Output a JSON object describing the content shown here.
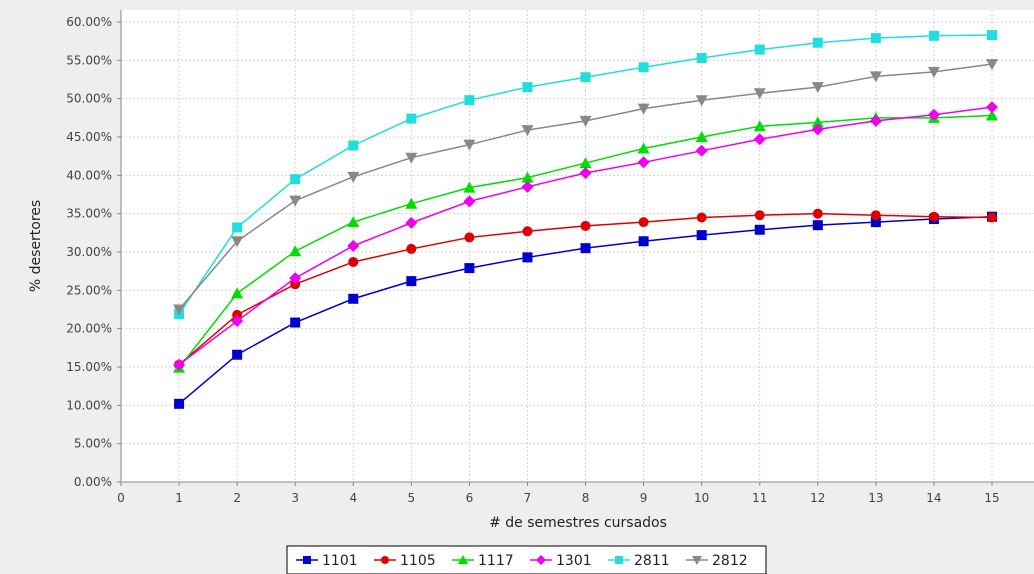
{
  "chart_data": {
    "type": "line",
    "xlabel": "# de semestres cursados",
    "ylabel": "% desertores",
    "xlim": [
      0,
      15
    ],
    "ylim": [
      0,
      60
    ],
    "x": [
      1,
      2,
      3,
      4,
      5,
      6,
      7,
      8,
      9,
      10,
      11,
      12,
      13,
      14,
      15
    ],
    "x_ticks": [
      "0",
      "1",
      "2",
      "3",
      "4",
      "5",
      "6",
      "7",
      "8",
      "9",
      "10",
      "11",
      "12",
      "13",
      "14",
      "15"
    ],
    "y_ticks": [
      "0.00%",
      "5.00%",
      "10.00%",
      "15.00%",
      "20.00%",
      "25.00%",
      "30.00%",
      "35.00%",
      "40.00%",
      "45.00%",
      "50.00%",
      "55.00%",
      "60.00%"
    ],
    "grid": true,
    "legend_position": "bottom-center",
    "series": [
      {
        "name": "1101",
        "color": "#0000cc",
        "marker": "square",
        "values": [
          10.2,
          16.6,
          20.8,
          23.9,
          26.2,
          27.9,
          29.3,
          30.5,
          31.4,
          32.2,
          32.9,
          33.5,
          33.9,
          34.3,
          34.6
        ]
      },
      {
        "name": "1105",
        "color": "#dd0000",
        "marker": "circle",
        "values": [
          15.3,
          21.8,
          25.8,
          28.7,
          30.4,
          31.9,
          32.7,
          33.4,
          33.9,
          34.5,
          34.8,
          35.0,
          34.8,
          34.6,
          34.5
        ]
      },
      {
        "name": "1117",
        "color": "#00dd00",
        "marker": "triangle-up",
        "values": [
          14.9,
          24.6,
          30.1,
          33.9,
          36.3,
          38.4,
          39.7,
          41.6,
          43.5,
          45.0,
          46.4,
          46.9,
          47.5,
          47.5,
          47.8
        ]
      },
      {
        "name": "1301",
        "color": "#ee00ee",
        "marker": "diamond",
        "values": [
          15.3,
          21.0,
          26.6,
          30.8,
          33.8,
          36.6,
          38.5,
          40.3,
          41.7,
          43.2,
          44.7,
          46.0,
          47.1,
          47.9,
          48.9
        ]
      },
      {
        "name": "2811",
        "color": "#22dddd",
        "marker": "square",
        "values": [
          21.9,
          33.2,
          39.5,
          43.9,
          47.4,
          49.8,
          51.5,
          52.8,
          54.1,
          55.3,
          56.4,
          57.3,
          57.9,
          58.2,
          58.3
        ]
      },
      {
        "name": "2812",
        "color": "#888888",
        "marker": "triangle-down",
        "values": [
          22.5,
          31.4,
          36.7,
          39.8,
          42.3,
          44.0,
          45.9,
          47.1,
          48.7,
          49.8,
          50.7,
          51.5,
          52.9,
          53.5,
          54.5
        ]
      }
    ]
  }
}
